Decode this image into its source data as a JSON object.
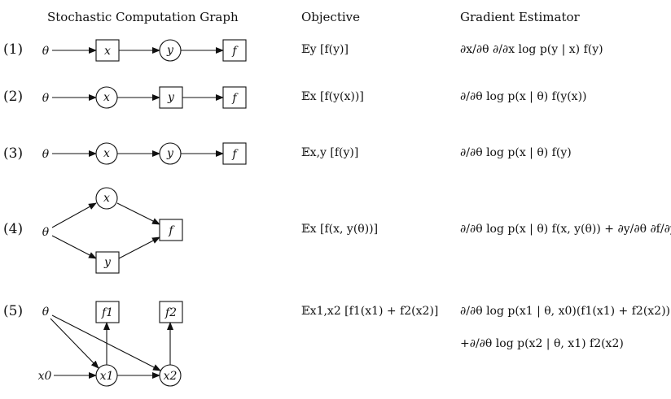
{
  "headers": {
    "graph": "Stochastic Computation Graph",
    "objective": "Objective",
    "estimator": "Gradient Estimator"
  },
  "rows": [
    {
      "label": "(1)",
      "objective": "𝔼y [f(y)]",
      "estimator": [
        "∂x/∂θ ∂/∂x log p(y | x) f(y)"
      ],
      "nodes": {
        "theta": "θ",
        "x": "x",
        "y": "y",
        "f": "f"
      }
    },
    {
      "label": "(2)",
      "objective": "𝔼x [f(y(x))]",
      "estimator": [
        "∂/∂θ log p(x | θ) f(y(x))"
      ],
      "nodes": {
        "theta": "θ",
        "x": "x",
        "y": "y",
        "f": "f"
      }
    },
    {
      "label": "(3)",
      "objective": "𝔼x,y [f(y)]",
      "estimator": [
        "∂/∂θ log p(x | θ) f(y)"
      ],
      "nodes": {
        "theta": "θ",
        "x": "x",
        "y": "y",
        "f": "f"
      }
    },
    {
      "label": "(4)",
      "objective": "𝔼x [f(x, y(θ))]",
      "estimator": [
        "∂/∂θ log p(x | θ) f(x, y(θ)) + ∂y/∂θ ∂f/∂y"
      ],
      "nodes": {
        "theta": "θ",
        "x": "x",
        "y": "y",
        "f": "f"
      }
    },
    {
      "label": "(5)",
      "objective": "𝔼x1,x2 [f1(x1) + f2(x2)]",
      "estimator": [
        "∂/∂θ log p(x1 | θ, x0)(f1(x1) + f2(x2))",
        "+∂/∂θ log p(x2 | θ, x1) f2(x2)"
      ],
      "nodes": {
        "theta": "θ",
        "x0": "x0",
        "x1": "x1",
        "x2": "x2",
        "f1": "f1",
        "f2": "f2"
      }
    }
  ]
}
